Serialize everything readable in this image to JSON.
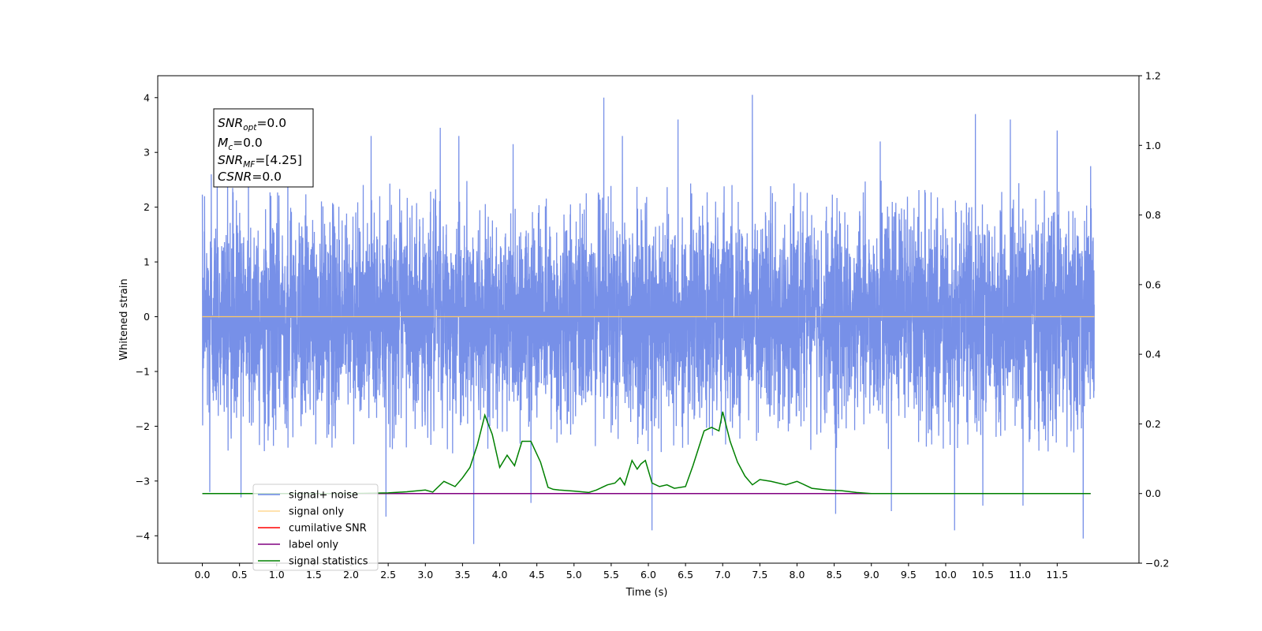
{
  "chart_data": {
    "type": "line",
    "xlabel": "Time (s)",
    "ylabel": "Whitened strain",
    "xlim": [
      -0.6,
      12.6
    ],
    "ylim": [
      -4.5,
      4.4
    ],
    "y2lim": [
      -0.2,
      1.2
    ],
    "x_ticks": [
      0.0,
      0.5,
      1.0,
      1.5,
      2.0,
      2.5,
      3.0,
      3.5,
      4.0,
      4.5,
      5.0,
      5.5,
      6.0,
      6.5,
      7.0,
      7.5,
      8.0,
      8.5,
      9.0,
      9.5,
      10.0,
      10.5,
      11.0,
      11.5
    ],
    "x_tick_labels": [
      "0.0",
      "0.5",
      "1.0",
      "1.5",
      "2.0",
      "2.5",
      "3.0",
      "3.5",
      "4.0",
      "4.5",
      "5.0",
      "5.5",
      "6.0",
      "6.5",
      "7.0",
      "7.5",
      "8.0",
      "8.5",
      "9.0",
      "9.5",
      "10.0",
      "10.5",
      "11.0",
      "11.5"
    ],
    "y_ticks": [
      -4,
      -3,
      -2,
      -1,
      0,
      1,
      2,
      3,
      4
    ],
    "y_tick_labels": [
      "−4",
      "−3",
      "−2",
      "−1",
      "0",
      "1",
      "2",
      "3",
      "4"
    ],
    "y2_ticks": [
      -0.2,
      0.0,
      0.2,
      0.4,
      0.6,
      0.8,
      1.0,
      1.2
    ],
    "y2_tick_labels": [
      "−0.2",
      "0.0",
      "0.2",
      "0.4",
      "0.6",
      "0.8",
      "1.0",
      "1.2"
    ],
    "grid": false,
    "legend_position": "lower-left",
    "series": [
      {
        "name": "signal+ noise",
        "axis": "left",
        "color": "#6b87e6",
        "x_range": [
          0.0,
          12.0
        ],
        "typical_range": [
          -1.6,
          1.6
        ],
        "envelope": [
          -2.5,
          2.5
        ],
        "notable_peaks": [
          {
            "x": 0.03,
            "y": 2.2
          },
          {
            "x": 0.12,
            "y": 2.6
          },
          {
            "x": 0.2,
            "y": 3.2
          },
          {
            "x": 0.34,
            "y": 2.55
          },
          {
            "x": 0.62,
            "y": 2.95
          },
          {
            "x": 1.15,
            "y": 3.1
          },
          {
            "x": 2.27,
            "y": 3.3
          },
          {
            "x": 3.2,
            "y": 3.45
          },
          {
            "x": 3.45,
            "y": 3.3
          },
          {
            "x": 4.18,
            "y": 3.15
          },
          {
            "x": 5.4,
            "y": 4.0
          },
          {
            "x": 5.65,
            "y": 3.3
          },
          {
            "x": 6.4,
            "y": 3.6
          },
          {
            "x": 7.4,
            "y": 4.05
          },
          {
            "x": 9.12,
            "y": 3.2
          },
          {
            "x": 10.4,
            "y": 3.7
          },
          {
            "x": 10.87,
            "y": 3.6
          },
          {
            "x": 11.5,
            "y": 3.4
          },
          {
            "x": 11.95,
            "y": 2.75
          }
        ],
        "notable_troughs": [
          {
            "x": 0.1,
            "y": -3.2
          },
          {
            "x": 0.52,
            "y": -3.3
          },
          {
            "x": 2.47,
            "y": -3.65
          },
          {
            "x": 3.65,
            "y": -4.15
          },
          {
            "x": 4.42,
            "y": -3.4
          },
          {
            "x": 6.05,
            "y": -3.9
          },
          {
            "x": 8.52,
            "y": -3.6
          },
          {
            "x": 9.27,
            "y": -3.55
          },
          {
            "x": 10.12,
            "y": -3.9
          },
          {
            "x": 10.5,
            "y": -3.45
          },
          {
            "x": 11.04,
            "y": -3.45
          },
          {
            "x": 11.85,
            "y": -4.05
          }
        ]
      },
      {
        "name": "signal only",
        "axis": "left",
        "color": "#ffc966",
        "x": [
          0.0,
          12.0
        ],
        "y": [
          0.0,
          0.0
        ]
      },
      {
        "name": "cumilative SNR",
        "axis": "right",
        "color": "#ff0000",
        "x": [],
        "y": []
      },
      {
        "name": "label only",
        "axis": "right",
        "color": "#800080",
        "x": [
          0.0,
          11.95
        ],
        "y": [
          0.0,
          0.0
        ]
      },
      {
        "name": "signal statistics",
        "axis": "right",
        "color": "#008000",
        "x": [
          0.0,
          2.0,
          2.5,
          2.75,
          3.0,
          3.1,
          3.25,
          3.4,
          3.5,
          3.6,
          3.7,
          3.8,
          3.9,
          4.0,
          4.1,
          4.2,
          4.3,
          4.42,
          4.55,
          4.65,
          4.72,
          4.8,
          5.0,
          5.2,
          5.3,
          5.45,
          5.55,
          5.62,
          5.68,
          5.78,
          5.85,
          5.9,
          5.96,
          6.05,
          6.15,
          6.25,
          6.35,
          6.5,
          6.6,
          6.75,
          6.85,
          6.95,
          7.0,
          7.1,
          7.2,
          7.3,
          7.4,
          7.5,
          7.65,
          7.85,
          8.0,
          8.2,
          8.4,
          8.6,
          8.8,
          9.0,
          11.95
        ],
        "y": [
          0.0,
          0.0,
          0.002,
          0.005,
          0.01,
          0.004,
          0.035,
          0.02,
          0.045,
          0.075,
          0.14,
          0.225,
          0.17,
          0.075,
          0.11,
          0.08,
          0.15,
          0.15,
          0.09,
          0.018,
          0.012,
          0.01,
          0.007,
          0.003,
          0.01,
          0.025,
          0.03,
          0.045,
          0.025,
          0.095,
          0.07,
          0.085,
          0.095,
          0.03,
          0.02,
          0.025,
          0.015,
          0.02,
          0.08,
          0.18,
          0.19,
          0.18,
          0.235,
          0.15,
          0.09,
          0.05,
          0.025,
          0.04,
          0.035,
          0.025,
          0.035,
          0.015,
          0.01,
          0.008,
          0.003,
          0.0,
          0.0
        ]
      }
    ],
    "annotation": {
      "snr_opt": "=0.0",
      "mc": "=0.0",
      "snr_mf": "=[4.25]",
      "csnr": "=0.0"
    }
  }
}
